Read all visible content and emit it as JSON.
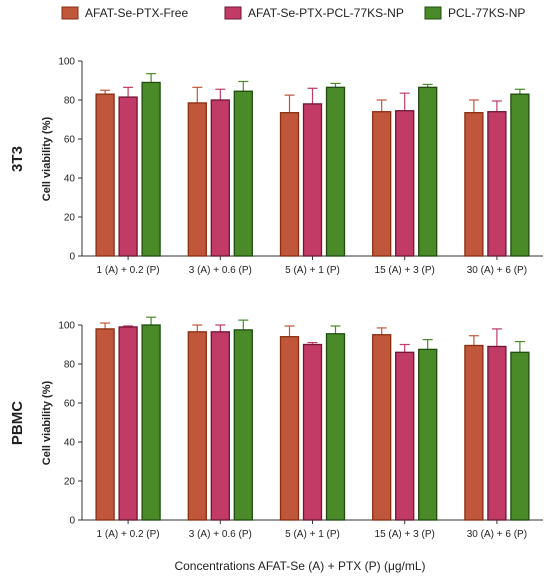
{
  "legend": [
    {
      "label": "AFAT-Se-PTX-Free",
      "color": "#c0573a",
      "stroke": "#8a2e12"
    },
    {
      "label": "AFAT-Se-PTX-PCL-77KS-NP",
      "color": "#c23a66",
      "stroke": "#6e1633"
    },
    {
      "label": "PCL-77KS-NP",
      "color": "#4a8a28",
      "stroke": "#1f4d0f"
    }
  ],
  "xlabel": "Concentrations AFAT-Se (A) + PTX (P) (μg/mL)",
  "chart_data": [
    {
      "type": "bar",
      "row_label": "3T3",
      "ylabel": "Cell viability (%)",
      "ylim": [
        0,
        100
      ],
      "yticks": [
        0,
        20,
        40,
        60,
        80,
        100
      ],
      "categories": [
        "1 (A) + 0.2 (P)",
        "3 (A) + 0.6 (P)",
        "5 (A) + 1 (P)",
        "15 (A) + 3 (P)",
        "30 (A) + 6 (P)"
      ],
      "series": [
        {
          "name": "AFAT-Se-PTX-Free",
          "values": [
            83,
            78.5,
            73.5,
            74,
            73.5
          ],
          "errors": [
            2,
            8,
            9,
            6,
            6.5
          ]
        },
        {
          "name": "AFAT-Se-PTX-PCL-77KS-NP",
          "values": [
            81.5,
            80,
            78,
            74.5,
            74
          ],
          "errors": [
            5,
            5.5,
            8,
            9,
            5.5
          ]
        },
        {
          "name": "PCL-77KS-NP",
          "values": [
            89,
            84.5,
            86.5,
            86.5,
            83
          ],
          "errors": [
            4.5,
            5,
            2,
            1.5,
            2.5
          ]
        }
      ]
    },
    {
      "type": "bar",
      "row_label": "PBMC",
      "ylabel": "Cell viability (%)",
      "ylim": [
        0,
        100
      ],
      "yticks": [
        0,
        20,
        40,
        60,
        80,
        100
      ],
      "categories": [
        "1 (A) + 0.2 (P)",
        "3 (A) + 0.6 (P)",
        "5 (A) + 1 (P)",
        "15 (A) + 3 (P)",
        "30 (A) + 6 (P)"
      ],
      "series": [
        {
          "name": "AFAT-Se-PTX-Free",
          "values": [
            98,
            96.5,
            94,
            95,
            89.5
          ],
          "errors": [
            3,
            3.5,
            5.5,
            3.5,
            5
          ]
        },
        {
          "name": "AFAT-Se-PTX-PCL-77KS-NP",
          "values": [
            99,
            96.5,
            90,
            86,
            89
          ],
          "errors": [
            0.5,
            3.5,
            1,
            4,
            9
          ]
        },
        {
          "name": "PCL-77KS-NP",
          "values": [
            100,
            97.5,
            95.5,
            87.5,
            86
          ],
          "errors": [
            4,
            5,
            4,
            5,
            5.5
          ]
        }
      ]
    }
  ]
}
